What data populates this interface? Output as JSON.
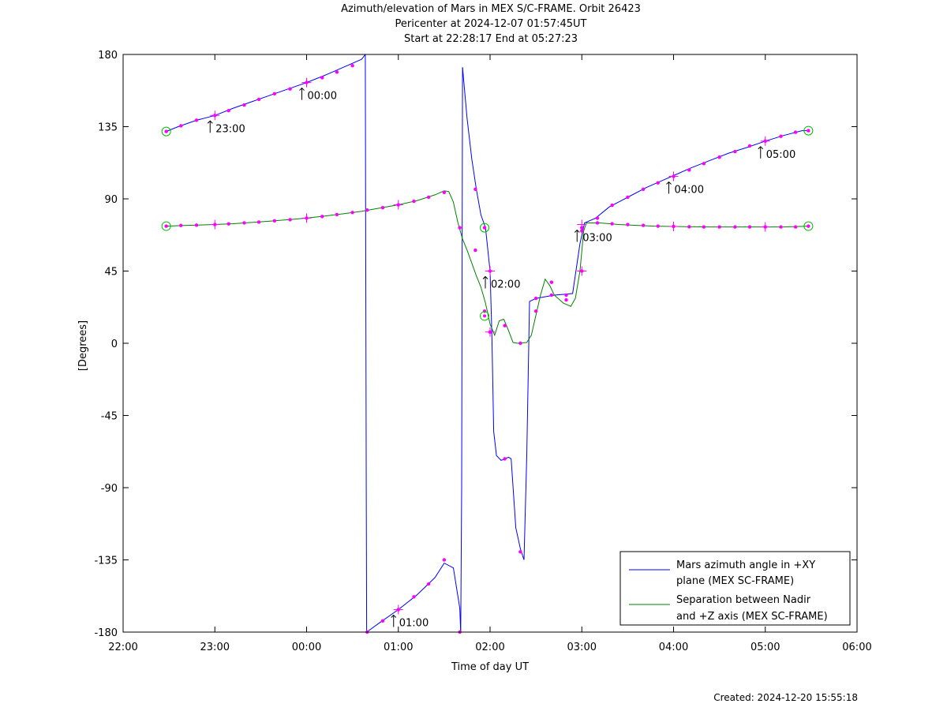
{
  "chart_data": {
    "type": "line",
    "title_lines": [
      "Azimuth/elevation of Mars in MEX S/C-FRAME.  Orbit 26423",
      "Pericenter at 2024-12-07 01:57:45UT",
      "Start at 22:28:17 End at 05:27:23"
    ],
    "xlabel": "Time of day UT",
    "ylabel": "[Degrees]",
    "xlim": [
      22,
      30
    ],
    "ylim": [
      -180,
      180
    ],
    "x_ticks": [
      {
        "v": 22,
        "label": "22:00"
      },
      {
        "v": 23,
        "label": "23:00"
      },
      {
        "v": 24,
        "label": "00:00"
      },
      {
        "v": 25,
        "label": "01:00"
      },
      {
        "v": 26,
        "label": "02:00"
      },
      {
        "v": 27,
        "label": "03:00"
      },
      {
        "v": 28,
        "label": "04:00"
      },
      {
        "v": 29,
        "label": "05:00"
      },
      {
        "v": 30,
        "label": "06:00"
      }
    ],
    "y_ticks": [
      {
        "v": 180,
        "label": "180"
      },
      {
        "v": 135,
        "label": "135"
      },
      {
        "v": 90,
        "label": "90"
      },
      {
        "v": 45,
        "label": "45"
      },
      {
        "v": 0,
        "label": "0"
      },
      {
        "v": -45,
        "label": "-45"
      },
      {
        "v": -90,
        "label": "-90"
      },
      {
        "v": -135,
        "label": "-135"
      },
      {
        "v": -180,
        "label": "-180"
      }
    ],
    "legend_position": "bottom-right",
    "series": [
      {
        "name": "Mars azimuth angle in +XY plane (MEX SC-FRAME)",
        "legend_lines": [
          "Mars azimuth angle in +XY",
          "plane (MEX SC-FRAME)"
        ],
        "color": "#0000ff",
        "segments": [
          [
            [
              22.47,
              132
            ],
            [
              22.6,
              135
            ],
            [
              22.8,
              139
            ],
            [
              23.0,
              142
            ],
            [
              23.2,
              146.5
            ],
            [
              23.4,
              150.5
            ],
            [
              23.6,
              154.5
            ],
            [
              23.8,
              158.5
            ],
            [
              24.0,
              162.5
            ],
            [
              24.2,
              167
            ],
            [
              24.4,
              172
            ],
            [
              24.6,
              177
            ],
            [
              24.64,
              180
            ]
          ],
          [
            [
              24.64,
              180
            ],
            [
              24.65,
              -90
            ],
            [
              24.655,
              -180
            ]
          ],
          [
            [
              24.655,
              -180
            ],
            [
              24.8,
              -174
            ],
            [
              25.0,
              -166
            ],
            [
              25.2,
              -157
            ],
            [
              25.4,
              -146
            ],
            [
              25.5,
              -137
            ],
            [
              25.6,
              -140
            ],
            [
              25.67,
              -165
            ],
            [
              25.68,
              -180
            ]
          ],
          [
            [
              25.68,
              -180
            ],
            [
              25.69,
              -90
            ],
            [
              25.7,
              172
            ]
          ],
          [
            [
              25.7,
              172
            ],
            [
              25.75,
              140
            ],
            [
              25.8,
              115
            ],
            [
              25.85,
              96
            ],
            [
              25.9,
              80
            ],
            [
              25.95,
              72
            ],
            [
              26.0,
              45
            ],
            [
              26.02,
              5
            ],
            [
              26.04,
              -55
            ],
            [
              26.07,
              -70
            ],
            [
              26.12,
              -73
            ],
            [
              26.2,
              -71
            ],
            [
              26.23,
              -72
            ],
            [
              26.28,
              -115
            ],
            [
              26.33,
              -128
            ],
            [
              26.37,
              -135
            ],
            [
              26.4,
              -70
            ],
            [
              26.43,
              26
            ],
            [
              26.5,
              28
            ],
            [
              26.7,
              30
            ],
            [
              26.9,
              31
            ],
            [
              26.98,
              62
            ],
            [
              27.03,
              75
            ],
            [
              27.15,
              78
            ],
            [
              27.3,
              85
            ],
            [
              27.5,
              91
            ],
            [
              27.7,
              97
            ],
            [
              27.9,
              102
            ],
            [
              28.0,
              104.5
            ],
            [
              28.2,
              109.5
            ],
            [
              28.4,
              114
            ],
            [
              28.6,
              118.5
            ],
            [
              28.8,
              122
            ],
            [
              29.0,
              126
            ],
            [
              29.2,
              129.5
            ],
            [
              29.4,
              132.5
            ],
            [
              29.47,
              132.5
            ]
          ]
        ],
        "markers": [
          [
            22.47,
            132
          ],
          [
            22.63,
            135.5
          ],
          [
            22.8,
            139
          ],
          [
            23.0,
            142
          ],
          [
            23.15,
            145
          ],
          [
            23.32,
            148.5
          ],
          [
            23.48,
            152
          ],
          [
            23.65,
            155.5
          ],
          [
            23.82,
            158.5
          ],
          [
            24.0,
            162.5
          ],
          [
            24.17,
            165.5
          ],
          [
            24.33,
            169
          ],
          [
            24.5,
            173
          ],
          [
            24.66,
            -180
          ],
          [
            24.83,
            -173
          ],
          [
            25.0,
            -166
          ],
          [
            25.17,
            -158
          ],
          [
            25.33,
            -150
          ],
          [
            25.5,
            -135
          ],
          [
            25.67,
            -180
          ],
          [
            25.84,
            96
          ],
          [
            25.94,
            72
          ],
          [
            26.0,
            45
          ],
          [
            26.0,
            7
          ],
          [
            26.16,
            -72
          ],
          [
            26.33,
            -130
          ],
          [
            26.5,
            28
          ],
          [
            26.67,
            30
          ],
          [
            26.83,
            30
          ],
          [
            27.0,
            45
          ],
          [
            27.0,
            70
          ],
          [
            27.17,
            78
          ],
          [
            27.33,
            86
          ],
          [
            27.5,
            91
          ],
          [
            27.67,
            96
          ],
          [
            27.83,
            100
          ],
          [
            28.0,
            104
          ],
          [
            28.17,
            108
          ],
          [
            28.33,
            112
          ],
          [
            28.5,
            116
          ],
          [
            28.67,
            119.5
          ],
          [
            28.83,
            123
          ],
          [
            29.0,
            126
          ],
          [
            29.17,
            129
          ],
          [
            29.33,
            131.5
          ],
          [
            29.47,
            132.5
          ]
        ]
      },
      {
        "name": "Separation between Nadir and +Z axis (MEX SC-FRAME)",
        "legend_lines": [
          "Separation between Nadir",
          "and +Z axis (MEX SC-FRAME)"
        ],
        "color": "#008000",
        "segments": [
          [
            [
              22.47,
              73
            ],
            [
              22.6,
              73.3
            ],
            [
              22.8,
              73.6
            ],
            [
              23.0,
              74
            ],
            [
              23.2,
              74.5
            ],
            [
              23.4,
              75.3
            ],
            [
              23.6,
              76.1
            ],
            [
              23.8,
              77
            ],
            [
              24.0,
              78
            ],
            [
              24.2,
              79.3
            ],
            [
              24.4,
              80.7
            ],
            [
              24.6,
              82.3
            ],
            [
              24.8,
              84.3
            ],
            [
              25.0,
              86.3
            ],
            [
              25.2,
              88.8
            ],
            [
              25.4,
              92.5
            ],
            [
              25.5,
              95
            ],
            [
              25.55,
              94.5
            ],
            [
              25.6,
              88
            ],
            [
              25.65,
              75
            ],
            [
              25.7,
              65
            ],
            [
              25.75,
              58
            ],
            [
              25.8,
              50
            ],
            [
              25.85,
              42
            ],
            [
              25.9,
              35
            ],
            [
              25.95,
              25
            ],
            [
              26.0,
              12
            ],
            [
              26.05,
              5
            ],
            [
              26.1,
              14
            ],
            [
              26.15,
              15
            ],
            [
              26.2,
              8
            ],
            [
              26.25,
              0.5
            ],
            [
              26.3,
              0
            ],
            [
              26.4,
              0.5
            ],
            [
              26.45,
              5
            ],
            [
              26.55,
              30
            ],
            [
              26.6,
              40
            ],
            [
              26.65,
              36
            ],
            [
              26.7,
              30
            ],
            [
              26.8,
              25
            ],
            [
              26.88,
              23
            ],
            [
              26.93,
              28
            ],
            [
              26.98,
              45
            ],
            [
              27.02,
              70
            ],
            [
              27.05,
              75
            ],
            [
              27.2,
              75
            ],
            [
              27.4,
              74
            ],
            [
              27.6,
              73.5
            ],
            [
              27.8,
              73
            ],
            [
              28.0,
              72.8
            ],
            [
              28.2,
              72.6
            ],
            [
              28.4,
              72.5
            ],
            [
              28.6,
              72.5
            ],
            [
              28.8,
              72.5
            ],
            [
              29.0,
              72.5
            ],
            [
              29.2,
              72.5
            ],
            [
              29.47,
              73
            ]
          ]
        ],
        "markers": [
          [
            22.47,
            73
          ],
          [
            22.63,
            73.4
          ],
          [
            22.8,
            73.6
          ],
          [
            23.0,
            74
          ],
          [
            23.15,
            74.4
          ],
          [
            23.32,
            75
          ],
          [
            23.48,
            75.5
          ],
          [
            23.65,
            76.3
          ],
          [
            23.82,
            77
          ],
          [
            24.0,
            78
          ],
          [
            24.17,
            79
          ],
          [
            24.33,
            80.2
          ],
          [
            24.5,
            81.5
          ],
          [
            24.66,
            83
          ],
          [
            24.83,
            84.5
          ],
          [
            25.0,
            86.3
          ],
          [
            25.17,
            88.5
          ],
          [
            25.33,
            91
          ],
          [
            25.5,
            94
          ],
          [
            25.67,
            72
          ],
          [
            25.84,
            58
          ],
          [
            25.94,
            20
          ],
          [
            26.0,
            7
          ],
          [
            26.16,
            11
          ],
          [
            26.33,
            0
          ],
          [
            26.5,
            20
          ],
          [
            26.67,
            38
          ],
          [
            26.83,
            27
          ],
          [
            27.0,
            72
          ],
          [
            27.17,
            75
          ],
          [
            27.33,
            74.5
          ],
          [
            27.5,
            74
          ],
          [
            27.67,
            73.5
          ],
          [
            27.83,
            73
          ],
          [
            28.0,
            72.8
          ],
          [
            28.17,
            72.6
          ],
          [
            28.33,
            72.5
          ],
          [
            28.5,
            72.5
          ],
          [
            28.67,
            72.5
          ],
          [
            28.83,
            72.5
          ],
          [
            29.0,
            72.5
          ],
          [
            29.17,
            72.5
          ],
          [
            29.33,
            72.5
          ],
          [
            29.47,
            73
          ]
        ]
      }
    ],
    "hour_marks": [
      {
        "x": 23.0,
        "y": 142,
        "label": "23:00"
      },
      {
        "x": 24.0,
        "y": 162.5,
        "label": "00:00"
      },
      {
        "x": 25.0,
        "y": -166,
        "label": "01:00"
      },
      {
        "x": 26.0,
        "y": 45,
        "label": "02:00"
      },
      {
        "x": 27.0,
        "y": 74,
        "label": "03:00"
      },
      {
        "x": 28.0,
        "y": 104,
        "label": "04:00"
      },
      {
        "x": 29.0,
        "y": 126,
        "label": "05:00"
      }
    ],
    "cross_marks": [
      [
        23.0,
        142
      ],
      [
        23.0,
        74
      ],
      [
        24.0,
        162.5
      ],
      [
        24.0,
        78
      ],
      [
        25.0,
        -166
      ],
      [
        25.0,
        86.3
      ],
      [
        26.0,
        45
      ],
      [
        26.0,
        7
      ],
      [
        27.0,
        45
      ],
      [
        27.0,
        74
      ],
      [
        28.0,
        104
      ],
      [
        28.0,
        72.8
      ],
      [
        29.0,
        126
      ],
      [
        29.0,
        72.5
      ]
    ],
    "circle_marks": [
      [
        22.47,
        132
      ],
      [
        22.47,
        73
      ],
      [
        25.94,
        72
      ],
      [
        25.94,
        17
      ],
      [
        29.47,
        132.5
      ],
      [
        29.47,
        73
      ]
    ]
  },
  "footer": "Created: 2024-12-20 15:55:18"
}
